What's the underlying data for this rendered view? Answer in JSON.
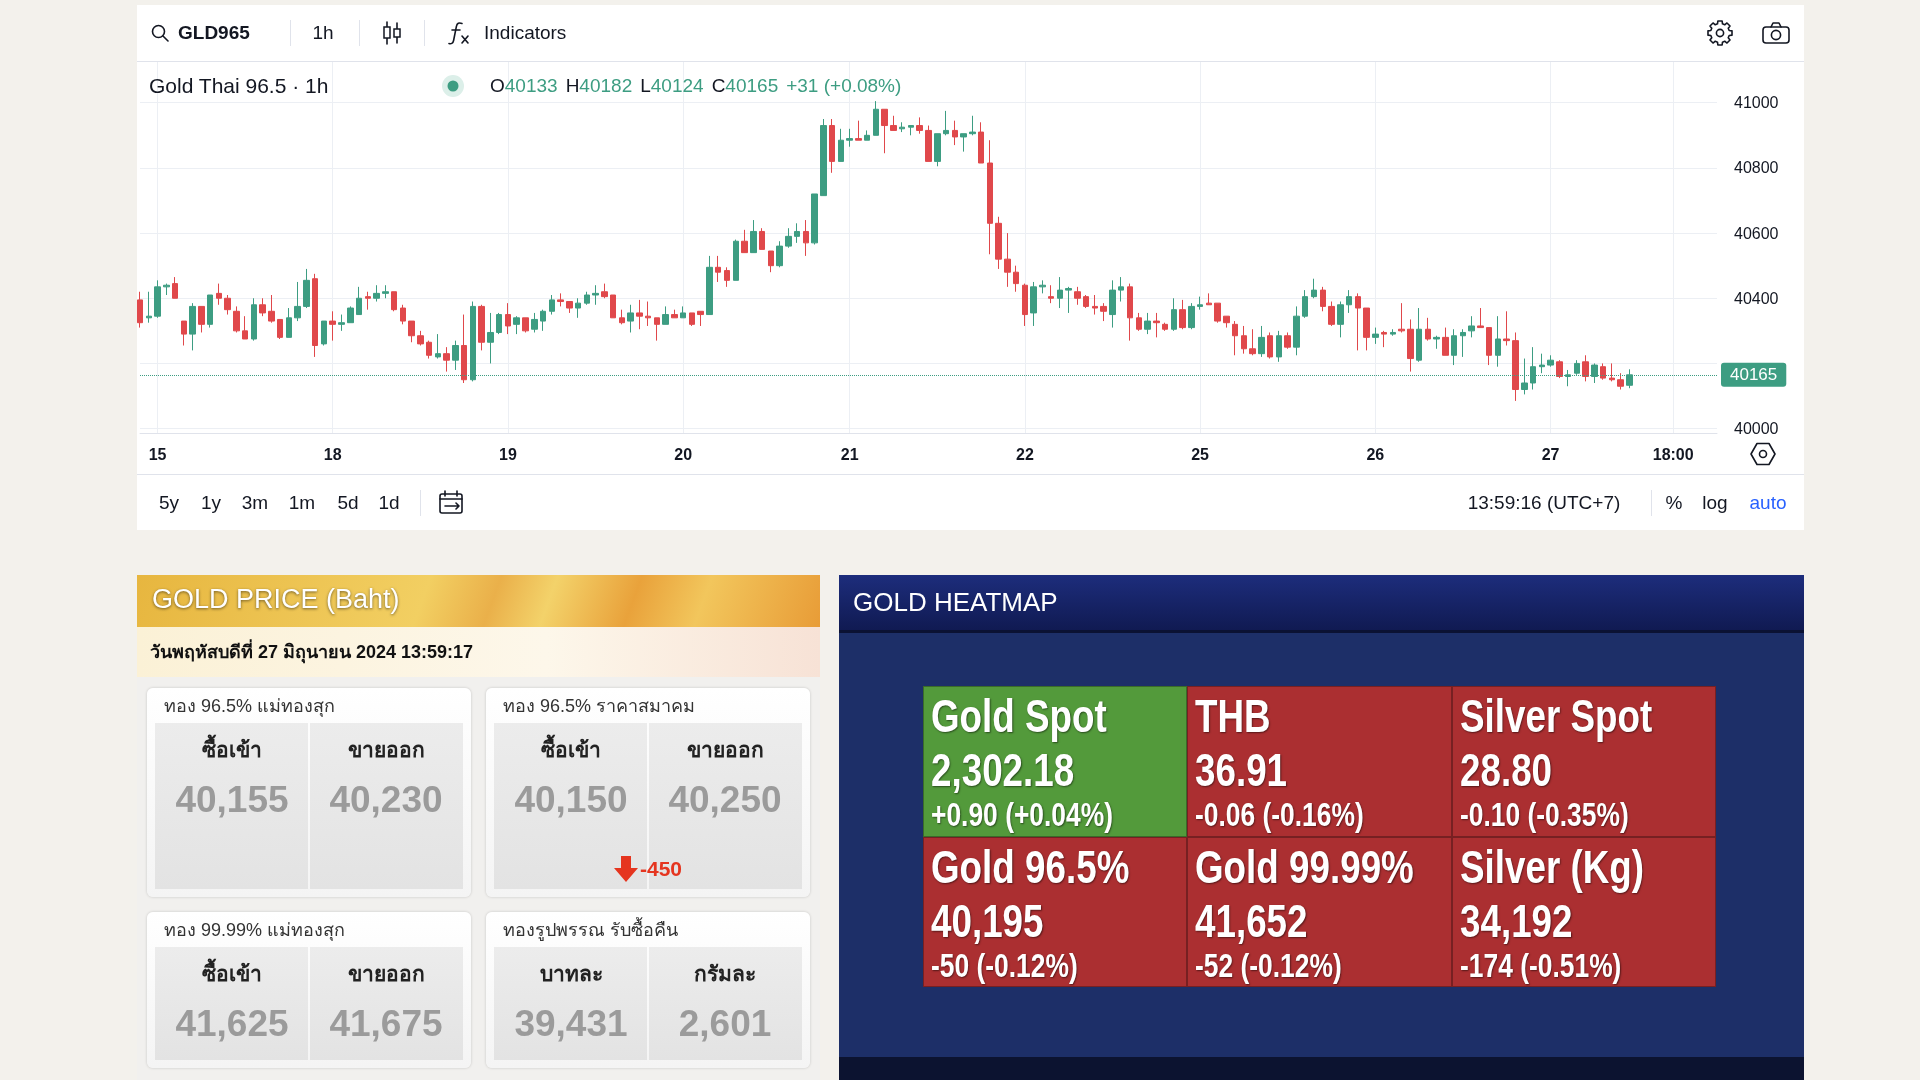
{
  "chart_data": [
    {
      "type": "candlestick",
      "title": "Gold Thai 96.5 · 1h",
      "annotations": [
        "GLD965",
        "1h",
        "Indicators",
        "O40133",
        "H40182",
        "L40124",
        "C40165",
        "+31 (+0.08%)",
        "5y",
        "1y",
        "3m",
        "1m",
        "5d",
        "1d",
        "13:59:16 (UTC+7)",
        "%",
        "log",
        "auto"
      ],
      "categories": [
        null,
        null,
        "15",
        null,
        null,
        null,
        null,
        null,
        null,
        null,
        null,
        null,
        null,
        null,
        null,
        null,
        null,
        null,
        null,
        null,
        null,
        null,
        "18",
        null,
        null,
        null,
        null,
        null,
        null,
        null,
        null,
        null,
        null,
        null,
        null,
        null,
        null,
        null,
        null,
        null,
        null,
        null,
        "19",
        null,
        null,
        null,
        null,
        null,
        null,
        null,
        null,
        null,
        null,
        null,
        null,
        null,
        null,
        null,
        null,
        null,
        null,
        null,
        "20",
        null,
        null,
        null,
        null,
        null,
        null,
        null,
        null,
        null,
        null,
        null,
        null,
        null,
        null,
        null,
        null,
        null,
        null,
        "21",
        null,
        null,
        null,
        null,
        null,
        null,
        null,
        null,
        null,
        null,
        null,
        null,
        null,
        null,
        null,
        null,
        null,
        null,
        null,
        "22",
        null,
        null,
        null,
        null,
        null,
        null,
        null,
        null,
        null,
        null,
        null,
        null,
        null,
        null,
        null,
        null,
        null,
        null,
        null,
        "25",
        null,
        null,
        null,
        null,
        null,
        null,
        null,
        null,
        null,
        null,
        null,
        null,
        null,
        null,
        null,
        null,
        null,
        null,
        null,
        "26",
        null,
        null,
        null,
        null,
        null,
        null,
        null,
        null,
        null,
        null,
        null,
        null,
        null,
        null,
        null,
        null,
        null,
        null,
        null,
        "27",
        null,
        null,
        null,
        null,
        null,
        null,
        null,
        null,
        null,
        null,
        null,
        null,
        null,
        "18:00",
        null,
        null,
        null,
        null,
        null
      ],
      "ohlc": [
        [
          40395,
          40420,
          40310,
          40325
        ],
        [
          40340,
          40420,
          40325,
          40345
        ],
        [
          40345,
          40455,
          40340,
          40435
        ],
        [
          40435,
          40445,
          40410,
          40440
        ],
        [
          40445,
          40465,
          40400,
          40400
        ],
        [
          40330,
          40330,
          40255,
          40290
        ],
        [
          40290,
          40385,
          40240,
          40375
        ],
        [
          40375,
          40375,
          40295,
          40320
        ],
        [
          40320,
          40410,
          40310,
          40410
        ],
        [
          40415,
          40445,
          40380,
          40400
        ],
        [
          40400,
          40410,
          40350,
          40365
        ],
        [
          40360,
          40375,
          40295,
          40300
        ],
        [
          40300,
          40345,
          40275,
          40275
        ],
        [
          40275,
          40400,
          40270,
          40380
        ],
        [
          40380,
          40400,
          40345,
          40355
        ],
        [
          40360,
          40410,
          40325,
          40330
        ],
        [
          40335,
          40335,
          40275,
          40280
        ],
        [
          40280,
          40370,
          40280,
          40340
        ],
        [
          40340,
          40450,
          40330,
          40375
        ],
        [
          40375,
          40490,
          40370,
          40455
        ],
        [
          40460,
          40475,
          40220,
          40255
        ],
        [
          40260,
          40330,
          40255,
          40330
        ],
        [
          40330,
          40360,
          40270,
          40320
        ],
        [
          40320,
          40350,
          40300,
          40325
        ],
        [
          40325,
          40375,
          40325,
          40370
        ],
        [
          40350,
          40435,
          40350,
          40400
        ],
        [
          40405,
          40420,
          40365,
          40400
        ],
        [
          40400,
          40440,
          40390,
          40415
        ],
        [
          40415,
          40440,
          40400,
          40420
        ],
        [
          40420,
          40420,
          40360,
          40365
        ],
        [
          40370,
          40380,
          40320,
          40330
        ],
        [
          40330,
          40330,
          40265,
          40285
        ],
        [
          40285,
          40300,
          40255,
          40260
        ],
        [
          40265,
          40270,
          40215,
          40225
        ],
        [
          40220,
          40290,
          40215,
          40230
        ],
        [
          40230,
          40250,
          40175,
          40210
        ],
        [
          40210,
          40270,
          40180,
          40255
        ],
        [
          40255,
          40350,
          40140,
          40150
        ],
        [
          40150,
          40390,
          40145,
          40375
        ],
        [
          40375,
          40380,
          40240,
          40265
        ],
        [
          40265,
          40355,
          40200,
          40295
        ],
        [
          40295,
          40355,
          40290,
          40350
        ],
        [
          40350,
          40385,
          40290,
          40315
        ],
        [
          40320,
          40345,
          40290,
          40340
        ],
        [
          40340,
          40340,
          40295,
          40300
        ],
        [
          40305,
          40355,
          40295,
          40335
        ],
        [
          40330,
          40365,
          40300,
          40360
        ],
        [
          40360,
          40410,
          40350,
          40395
        ],
        [
          40395,
          40415,
          40375,
          40390
        ],
        [
          40390,
          40390,
          40355,
          40370
        ],
        [
          40370,
          40400,
          40340,
          40385
        ],
        [
          40385,
          40420,
          40380,
          40410
        ],
        [
          40410,
          40440,
          40380,
          40415
        ],
        [
          40420,
          40445,
          40400,
          40405
        ],
        [
          40410,
          40410,
          40340,
          40340
        ],
        [
          40340,
          40365,
          40320,
          40325
        ],
        [
          40330,
          40380,
          40295,
          40355
        ],
        [
          40355,
          40395,
          40305,
          40345
        ],
        [
          40345,
          40390,
          40315,
          40340
        ],
        [
          40340,
          40340,
          40270,
          40320
        ],
        [
          40320,
          40375,
          40320,
          40350
        ],
        [
          40350,
          40365,
          40340,
          40340
        ],
        [
          40340,
          40375,
          40340,
          40355
        ],
        [
          40355,
          40355,
          40315,
          40320
        ],
        [
          40360,
          40360,
          40315,
          40350
        ],
        [
          40350,
          40530,
          40350,
          40495
        ],
        [
          40495,
          40530,
          40450,
          40480
        ],
        [
          40485,
          40495,
          40435,
          40455
        ],
        [
          40455,
          40580,
          40455,
          40575
        ],
        [
          40575,
          40610,
          40540,
          40540
        ],
        [
          40540,
          40640,
          40540,
          40605
        ],
        [
          40605,
          40615,
          40550,
          40550
        ],
        [
          40545,
          40545,
          40480,
          40500
        ],
        [
          40500,
          40575,
          40495,
          40560
        ],
        [
          40560,
          40615,
          40555,
          40590
        ],
        [
          40590,
          40630,
          40570,
          40605
        ],
        [
          40605,
          40640,
          40530,
          40570
        ],
        [
          40570,
          40720,
          40565,
          40720
        ],
        [
          40715,
          40950,
          40715,
          40930
        ],
        [
          40930,
          40950,
          40785,
          40820
        ],
        [
          40820,
          40920,
          40820,
          40885
        ],
        [
          40885,
          40920,
          40865,
          40890
        ],
        [
          40890,
          40945,
          40885,
          40885
        ],
        [
          40885,
          40915,
          40885,
          40900
        ],
        [
          40900,
          41005,
          40900,
          40980
        ],
        [
          40980,
          40980,
          40845,
          40930
        ],
        [
          40930,
          40960,
          40915,
          40915
        ],
        [
          40920,
          40940,
          40910,
          40925
        ],
        [
          40925,
          40930,
          40900,
          40930
        ],
        [
          40930,
          40955,
          40905,
          40915
        ],
        [
          40915,
          40930,
          40820,
          40820
        ],
        [
          40820,
          40905,
          40805,
          40905
        ],
        [
          40905,
          40975,
          40900,
          40915
        ],
        [
          40915,
          40945,
          40870,
          40895
        ],
        [
          40895,
          40905,
          40850,
          40905
        ],
        [
          40905,
          40960,
          40900,
          40910
        ],
        [
          40910,
          40940,
          40815,
          40815
        ],
        [
          40815,
          40885,
          40535,
          40630
        ],
        [
          40630,
          40650,
          40490,
          40520
        ],
        [
          40520,
          40600,
          40435,
          40480
        ],
        [
          40480,
          40500,
          40420,
          40445
        ],
        [
          40440,
          40445,
          40315,
          40350
        ],
        [
          40355,
          40450,
          40315,
          40435
        ],
        [
          40435,
          40455,
          40415,
          40440
        ],
        [
          40405,
          40440,
          40385,
          40400
        ],
        [
          40400,
          40465,
          40370,
          40425
        ],
        [
          40425,
          40435,
          40355,
          40430
        ],
        [
          40420,
          40435,
          40380,
          40400
        ],
        [
          40405,
          40410,
          40370,
          40375
        ],
        [
          40375,
          40410,
          40350,
          40370
        ],
        [
          40375,
          40385,
          40330,
          40360
        ],
        [
          40350,
          40455,
          40310,
          40425
        ],
        [
          40425,
          40465,
          40390,
          40435
        ],
        [
          40435,
          40445,
          40270,
          40340
        ],
        [
          40340,
          40355,
          40300,
          40305
        ],
        [
          40305,
          40355,
          40290,
          40330
        ],
        [
          40330,
          40355,
          40280,
          40325
        ],
        [
          40320,
          40325,
          40300,
          40305
        ],
        [
          40305,
          40400,
          40300,
          40365
        ],
        [
          40365,
          40395,
          40305,
          40310
        ],
        [
          40310,
          40385,
          40305,
          40375
        ],
        [
          40375,
          40405,
          40365,
          40380
        ],
        [
          40385,
          40415,
          40380,
          40380
        ],
        [
          40385,
          40385,
          40325,
          40330
        ],
        [
          40345,
          40345,
          40310,
          40325
        ],
        [
          40320,
          40330,
          40225,
          40285
        ],
        [
          40285,
          40315,
          40230,
          40245
        ],
        [
          40245,
          40305,
          40225,
          40230
        ],
        [
          40230,
          40315,
          40220,
          40280
        ],
        [
          40285,
          40295,
          40215,
          40220
        ],
        [
          40220,
          40300,
          40205,
          40285
        ],
        [
          40285,
          40295,
          40245,
          40250
        ],
        [
          40250,
          40375,
          40225,
          40345
        ],
        [
          40345,
          40425,
          40340,
          40405
        ],
        [
          40405,
          40460,
          40400,
          40425
        ],
        [
          40425,
          40435,
          40360,
          40375
        ],
        [
          40375,
          40390,
          40315,
          40320
        ],
        [
          40320,
          40390,
          40280,
          40380
        ],
        [
          40380,
          40425,
          40355,
          40405
        ],
        [
          40405,
          40415,
          40240,
          40370
        ],
        [
          40370,
          40370,
          40240,
          40280
        ],
        [
          40280,
          40310,
          40260,
          40290
        ],
        [
          40295,
          40300,
          40250,
          40290
        ],
        [
          40290,
          40305,
          40285,
          40295
        ],
        [
          40305,
          40385,
          40295,
          40300
        ],
        [
          40305,
          40335,
          40175,
          40215
        ],
        [
          40210,
          40370,
          40205,
          40305
        ],
        [
          40305,
          40340,
          40270,
          40275
        ],
        [
          40275,
          40285,
          40245,
          40280
        ],
        [
          40280,
          40310,
          40225,
          40225
        ],
        [
          40225,
          40305,
          40195,
          40285
        ],
        [
          40285,
          40305,
          40220,
          40295
        ],
        [
          40300,
          40345,
          40280,
          40315
        ],
        [
          40315,
          40370,
          40310,
          40310
        ],
        [
          40310,
          40310,
          40195,
          40225
        ],
        [
          40225,
          40345,
          40190,
          40275
        ],
        [
          40275,
          40360,
          40255,
          40270
        ],
        [
          40270,
          40295,
          40085,
          40120
        ],
        [
          40120,
          40215,
          40105,
          40140
        ],
        [
          40140,
          40250,
          40120,
          40190
        ],
        [
          40190,
          40230,
          40170,
          40195
        ],
        [
          40195,
          40225,
          40190,
          40210
        ],
        [
          40205,
          40210,
          40155,
          40160
        ],
        [
          40160,
          40180,
          40130,
          40165
        ],
        [
          40170,
          40210,
          40165,
          40200
        ],
        [
          40205,
          40225,
          40145,
          40160
        ],
        [
          40160,
          40200,
          40140,
          40195
        ],
        [
          40190,
          40200,
          40150,
          40155
        ],
        [
          40155,
          40200,
          40145,
          40150
        ],
        [
          40150,
          40170,
          40120,
          40130
        ],
        [
          40133,
          40182,
          40124,
          40165
        ],
        null,
        null,
        null,
        null,
        null,
        null,
        null,
        null,
        null,
        null
      ],
      "ylim": [
        39985,
        41125
      ],
      "yticks": [
        40000,
        {
          "value": 40200,
          "label": null
        },
        40400,
        40600,
        40800,
        41000
      ],
      "grid": true,
      "ref_lines": [
        {
          "axis": "y",
          "value": 40165,
          "label": "40165",
          "color": "#3d9d82",
          "line_style": "dotted"
        }
      ]
    },
    {
      "type": "other",
      "title": "GOLD PRICE (Baht)",
      "subtitle": "วันพฤหัสบดีที่ 27 มิถุนายน 2024 13:59:17",
      "annotations": [
        "ทอง 96.5% แม่ทองสุก",
        "ซื้อเข้า",
        "ขายออก",
        "40,155",
        "40,230",
        "ทอง 96.5% ราคาสมาคม",
        "ซื้อเข้า",
        "ขายออก",
        "40,150",
        "40,250",
        "-450",
        "ทอง 99.99% แม่ทองสุก",
        "ซื้อเข้า",
        "ขายออก",
        "41,625",
        "41,675",
        "ทองรูปพรรณ รับซื้อคืน",
        "บาทละ",
        "กรัมละ",
        "39,431",
        "2,601"
      ]
    },
    {
      "type": "other",
      "title": "GOLD HEATMAP",
      "annotations": [
        "Gold Spot",
        "2,302.18",
        "+0.90 (+0.04%)",
        "THB",
        "36.91",
        "-0.06 (-0.16%)",
        "Silver Spot",
        "28.80",
        "-0.10 (-0.35%)",
        "Gold 96.5%",
        "40,195",
        "-50 (-0.12%)",
        "Gold 99.99%",
        "41,652",
        "-52 (-0.12%)",
        "Silver (Kg)",
        "34,192",
        "-174 (-0.51%)"
      ],
      "colors": [
        "#539a3b",
        "#ab2f31",
        "#ab2f31",
        "#ab2f31",
        "#ab2f31",
        "#ab2f31"
      ]
    }
  ]
}
